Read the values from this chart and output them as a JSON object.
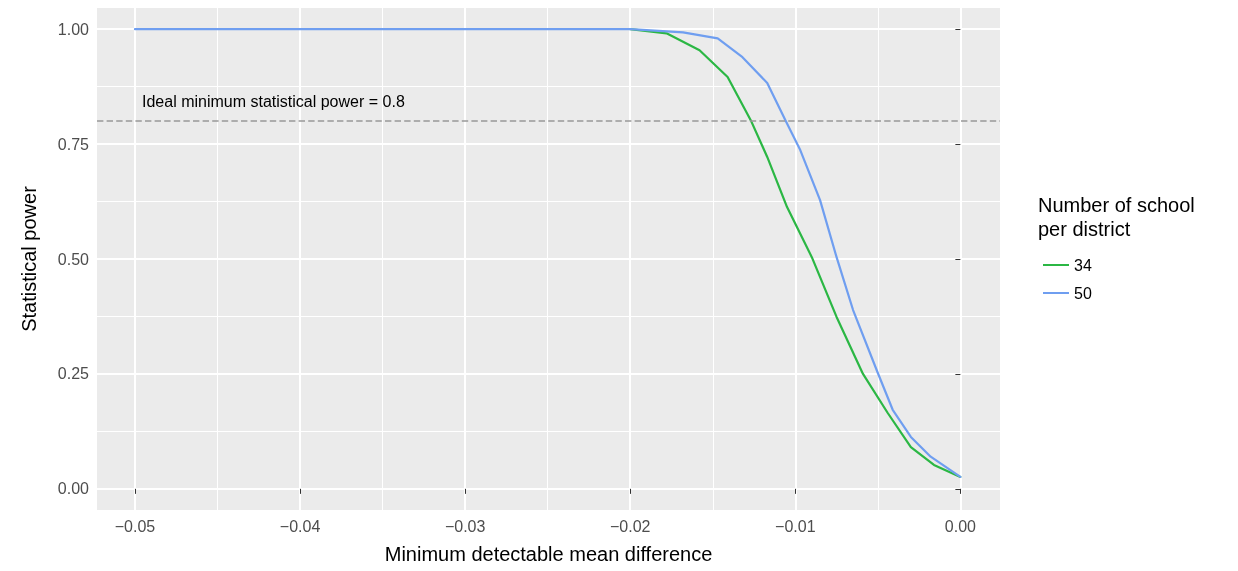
{
  "chart_data": {
    "type": "line",
    "xlabel": "Minimum detectable mean difference",
    "ylabel": "Statistical power",
    "legend_title": "Number of school per district",
    "series": [
      {
        "name": "34",
        "color": "#2bb744",
        "x": [
          -0.02,
          -0.0178,
          -0.0158,
          -0.0141,
          -0.0127,
          -0.0117,
          -0.0105,
          -0.009,
          -0.0075,
          -0.0059,
          -0.0044,
          -0.003,
          -0.0016,
          0
        ],
        "values": [
          1.0,
          0.991,
          0.954,
          0.896,
          0.802,
          0.722,
          0.613,
          0.504,
          0.374,
          0.25,
          0.165,
          0.091,
          0.052,
          0.026
        ]
      },
      {
        "name": "50",
        "color": "#6f9ef0",
        "x": [
          -0.05,
          -0.04,
          -0.03,
          -0.02,
          -0.0168,
          -0.0147,
          -0.0132,
          -0.0117,
          -0.0106,
          -0.0097,
          -0.0085,
          -0.0075,
          -0.0065,
          -0.005,
          -0.0041,
          -0.003,
          -0.0018,
          0
        ],
        "values": [
          1.0,
          1.0,
          1.0,
          1.0,
          0.993,
          0.98,
          0.939,
          0.883,
          0.802,
          0.737,
          0.628,
          0.504,
          0.389,
          0.252,
          0.172,
          0.113,
          0.07,
          0.026
        ]
      }
    ],
    "xlim": [
      -0.0523,
      0.0024
    ],
    "xticks": [
      {
        "value": -0.05,
        "label": "−0.05"
      },
      {
        "value": -0.04,
        "label": "−0.04"
      },
      {
        "value": -0.03,
        "label": "−0.03"
      },
      {
        "value": -0.02,
        "label": "−0.02"
      },
      {
        "value": -0.01,
        "label": "−0.01"
      },
      {
        "value": 0,
        "label": "0.00"
      }
    ],
    "ylim": [
      -0.046,
      1.046
    ],
    "yticks": [
      {
        "value": 0,
        "label": "0.00"
      },
      {
        "value": 0.25,
        "label": "0.25"
      },
      {
        "value": 0.5,
        "label": "0.50"
      },
      {
        "value": 0.75,
        "label": "0.75"
      },
      {
        "value": 1,
        "label": "1.00"
      }
    ],
    "ref_lines": [
      {
        "axis": "y",
        "value": 0.8,
        "label": "Ideal minimum statistical power = 0.8",
        "color": "#999999",
        "line_style": "dashed"
      }
    ],
    "grid": true,
    "legend": "right",
    "marker": "none",
    "line_style": "solid"
  }
}
